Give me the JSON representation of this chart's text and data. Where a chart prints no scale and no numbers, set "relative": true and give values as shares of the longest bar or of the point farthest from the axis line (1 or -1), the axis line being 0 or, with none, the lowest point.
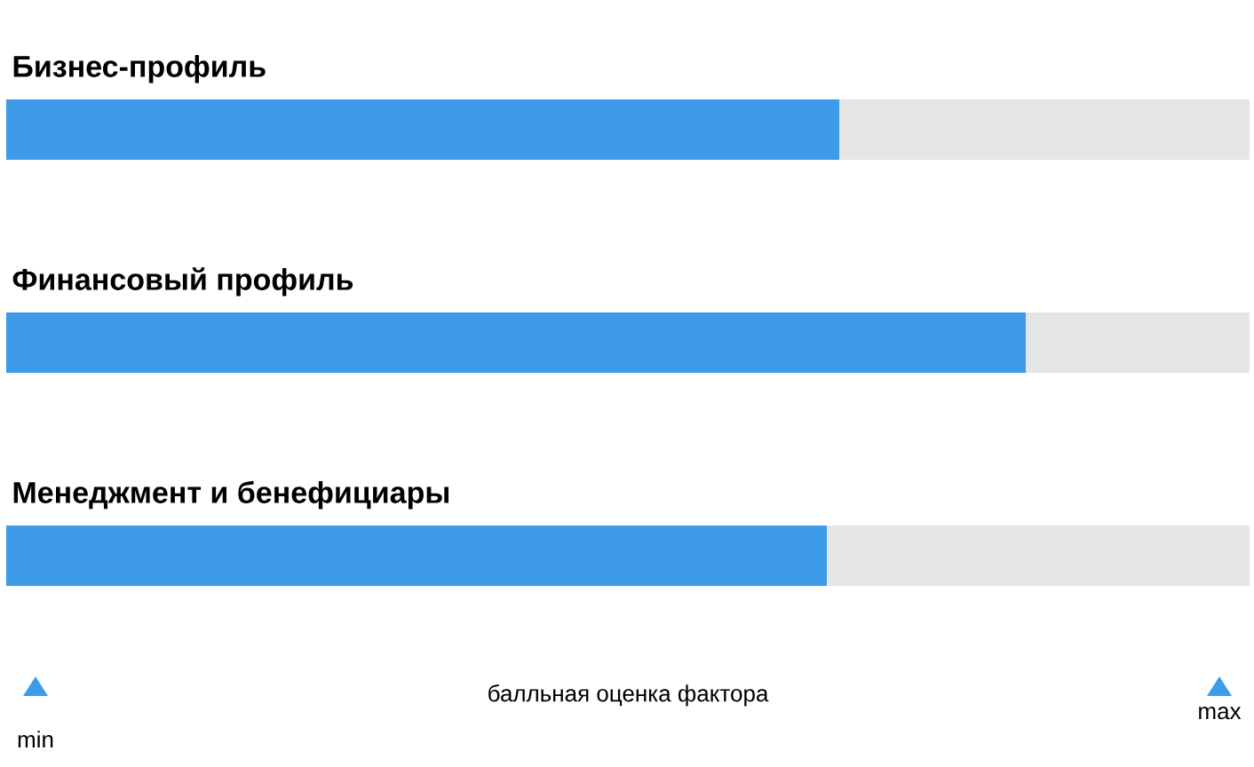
{
  "chart_data": {
    "type": "bar",
    "orientation": "horizontal",
    "stacked": true,
    "relative": true,
    "categories": [
      "Бизнес-профиль",
      "Финансовый профиль",
      "Менеджмент и бенефициары"
    ],
    "series": [
      {
        "color": "#3d9be9",
        "values": [
          0.67,
          0.82,
          0.66
        ]
      },
      {
        "color": "#e5e5e5",
        "values": [
          0.33,
          0.18,
          0.34
        ]
      }
    ],
    "xlabel": "балльная оценка фактора",
    "annotations": [
      "min",
      "max"
    ]
  }
}
